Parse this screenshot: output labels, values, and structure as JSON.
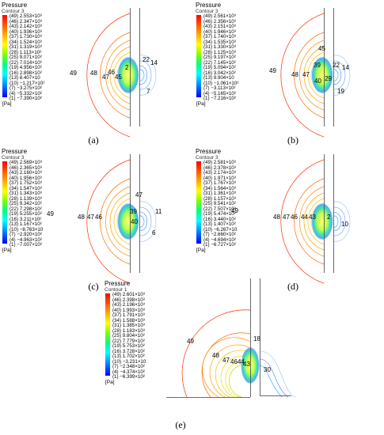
{
  "panels": [
    {
      "id": "a",
      "title": "Pressure",
      "subtitle": "Contour 3",
      "unit": "[Pa]",
      "caption": "(a)",
      "levels": [
        {
          "index": "(49)",
          "value": "2.553×10³"
        },
        {
          "index": "(46)",
          "value": "2.347×10³"
        },
        {
          "index": "(43)",
          "value": "2.142×10³"
        },
        {
          "index": "(40)",
          "value": "1.936×10³"
        },
        {
          "index": "(37)",
          "value": "1.730×10³"
        },
        {
          "index": "(34)",
          "value": "1.524×10³"
        },
        {
          "index": "(31)",
          "value": "1.319×10³"
        },
        {
          "index": "(28)",
          "value": "1.113×10³"
        },
        {
          "index": "(25)",
          "value": "9.071×10²"
        },
        {
          "index": "(22)",
          "value": "7.014×10²"
        },
        {
          "index": "(19)",
          "value": "4.956×10²"
        },
        {
          "index": "(16)",
          "value": "2.898×10²"
        },
        {
          "index": "(13)",
          "value": "8.407×10"
        },
        {
          "index": "(10)",
          "value": "−1.217×10²"
        },
        {
          "index": "(7)",
          "value": "−3.275×10²"
        },
        {
          "index": "(4)",
          "value": "−5.332×10²"
        },
        {
          "index": "(1)",
          "value": "−7.390×10²"
        }
      ],
      "contour_labels": [
        "49",
        "48",
        "47",
        "46",
        "45",
        "2",
        "22",
        "14",
        "7"
      ]
    },
    {
      "id": "b",
      "title": "Pressure",
      "subtitle": "Contour 3",
      "unit": "[Pa]",
      "caption": "(b)",
      "levels": [
        {
          "index": "(49)",
          "value": "2.561×10³"
        },
        {
          "index": "(46)",
          "value": "2.356×10³"
        },
        {
          "index": "(43)",
          "value": "2.151×10³"
        },
        {
          "index": "(40)",
          "value": "1.946×10³"
        },
        {
          "index": "(37)",
          "value": "1.740×10³"
        },
        {
          "index": "(34)",
          "value": "1.535×10³"
        },
        {
          "index": "(31)",
          "value": "1.330×10³"
        },
        {
          "index": "(28)",
          "value": "1.125×10³"
        },
        {
          "index": "(25)",
          "value": "9.197×10²"
        },
        {
          "index": "(22)",
          "value": "7.145×10²"
        },
        {
          "index": "(19)",
          "value": "5.094×10²"
        },
        {
          "index": "(16)",
          "value": "3.042×10²"
        },
        {
          "index": "(13)",
          "value": "9.904×10"
        },
        {
          "index": "(10)",
          "value": "−1.061×10²"
        },
        {
          "index": "(7)",
          "value": "−3.113×10²"
        },
        {
          "index": "(4)",
          "value": "−5.165×10²"
        },
        {
          "index": "(1)",
          "value": "−7.216×10²"
        }
      ],
      "contour_labels": [
        "49",
        "48",
        "47",
        "45",
        "39",
        "40",
        "29",
        "22",
        "14",
        "19"
      ]
    },
    {
      "id": "c",
      "title": "Pressure",
      "subtitle": "Contour 3",
      "unit": "[Pa]",
      "caption": "(c)",
      "levels": [
        {
          "index": "(49)",
          "value": "2.569×10³"
        },
        {
          "index": "(46)",
          "value": "2.365×10³"
        },
        {
          "index": "(43)",
          "value": "2.160×10³"
        },
        {
          "index": "(40)",
          "value": "1.956×10³"
        },
        {
          "index": "(37)",
          "value": "1.752×10³"
        },
        {
          "index": "(34)",
          "value": "1.547×10³"
        },
        {
          "index": "(31)",
          "value": "1.343×10³"
        },
        {
          "index": "(28)",
          "value": "1.139×10³"
        },
        {
          "index": "(25)",
          "value": "9.342×10²"
        },
        {
          "index": "(22)",
          "value": "7.298×10²"
        },
        {
          "index": "(19)",
          "value": "5.255×10²"
        },
        {
          "index": "(16)",
          "value": "3.211×10²"
        },
        {
          "index": "(13)",
          "value": "1.167×10²"
        },
        {
          "index": "(10)",
          "value": "−8.763×10"
        },
        {
          "index": "(7)",
          "value": "−2.920×10²"
        },
        {
          "index": "(4)",
          "value": "−4.963×10²"
        },
        {
          "index": "(1)",
          "value": "−7.007×10²"
        }
      ],
      "contour_labels": [
        "49",
        "48",
        "47",
        "46",
        "47",
        "39",
        "40",
        "11",
        "6"
      ]
    },
    {
      "id": "d",
      "title": "Pressure",
      "subtitle": "Contour 3",
      "unit": "[Pa]",
      "caption": "(d)",
      "levels": [
        {
          "index": "(49)",
          "value": "2.581×10³"
        },
        {
          "index": "(46)",
          "value": "2.378×10³"
        },
        {
          "index": "(43)",
          "value": "2.174×10³"
        },
        {
          "index": "(40)",
          "value": "1.971×10³"
        },
        {
          "index": "(37)",
          "value": "1.767×10³"
        },
        {
          "index": "(34)",
          "value": "1.564×10³"
        },
        {
          "index": "(31)",
          "value": "1.361×10³"
        },
        {
          "index": "(28)",
          "value": "1.157×10³"
        },
        {
          "index": "(25)",
          "value": "9.541×10²"
        },
        {
          "index": "(22)",
          "value": "7.507×10²"
        },
        {
          "index": "(19)",
          "value": "5.474×10²"
        },
        {
          "index": "(16)",
          "value": "3.440×10²"
        },
        {
          "index": "(13)",
          "value": "1.407×10²"
        },
        {
          "index": "(10)",
          "value": "−6.267×10"
        },
        {
          "index": "(7)",
          "value": "−2.660×10²"
        },
        {
          "index": "(4)",
          "value": "−4.694×10²"
        },
        {
          "index": "(1)",
          "value": "−6.727×10²"
        }
      ],
      "contour_labels": [
        "49",
        "48",
        "47",
        "46",
        "44",
        "43",
        "2",
        "10"
      ]
    },
    {
      "id": "e",
      "title": "Pressure",
      "subtitle": "Contour 1",
      "unit": "[Pa]",
      "caption": "(e)",
      "levels": [
        {
          "index": "(49)",
          "value": "2.601×10³"
        },
        {
          "index": "(46)",
          "value": "2.398×10³"
        },
        {
          "index": "(43)",
          "value": "2.196×10³"
        },
        {
          "index": "(40)",
          "value": "1.993×10³"
        },
        {
          "index": "(37)",
          "value": "1.791×10³"
        },
        {
          "index": "(34)",
          "value": "1.588×10³"
        },
        {
          "index": "(31)",
          "value": "1.385×10³"
        },
        {
          "index": "(28)",
          "value": "1.183×10³"
        },
        {
          "index": "(25)",
          "value": "9.804×10²"
        },
        {
          "index": "(22)",
          "value": "7.779×10²"
        },
        {
          "index": "(19)",
          "value": "5.753×10²"
        },
        {
          "index": "(16)",
          "value": "3.728×10²"
        },
        {
          "index": "(13)",
          "value": "1.702×10²"
        },
        {
          "index": "(10)",
          "value": "−3.231×10"
        },
        {
          "index": "(7)",
          "value": "−2.348×10²"
        },
        {
          "index": "(4)",
          "value": "−4.374×10²"
        },
        {
          "index": "(1)",
          "value": "−6.399×10²"
        }
      ],
      "contour_labels": [
        "49",
        "48",
        "47",
        "46",
        "44",
        "43",
        "18",
        "30"
      ]
    }
  ]
}
